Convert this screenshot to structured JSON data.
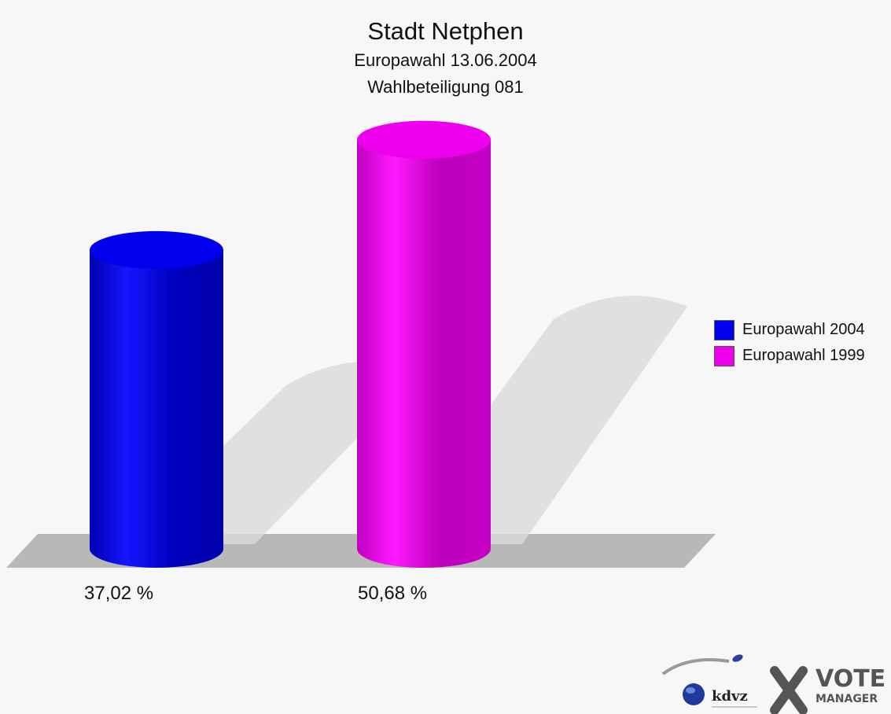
{
  "title": "Stadt Netphen",
  "subtitle1": "Europawahl 13.06.2004",
  "subtitle2": "Wahlbeteiligung 081",
  "chart_data": {
    "type": "bar",
    "title": "Stadt Netphen",
    "subtitle": [
      "Europawahl 13.06.2004",
      "Wahlbeteiligung 081"
    ],
    "categories": [
      "Europawahl 2004",
      "Europawahl 1999"
    ],
    "values": [
      37.02,
      50.68
    ],
    "value_labels": [
      "37,02 %",
      "50,68 %"
    ],
    "colors": [
      "#0000ee",
      "#ee00ee"
    ],
    "unit": "%",
    "ylim": [
      0,
      60
    ],
    "grid": false,
    "legend_position": "right",
    "style": "3d-cylinder"
  },
  "legend": [
    {
      "label": "Europawahl 2004",
      "color": "#0000ee"
    },
    {
      "label": "Europawahl 1999",
      "color": "#ee00ee"
    }
  ],
  "logo": {
    "brand": "kdvz",
    "product_top": "VOTE",
    "product_bottom": "MANAGER"
  }
}
